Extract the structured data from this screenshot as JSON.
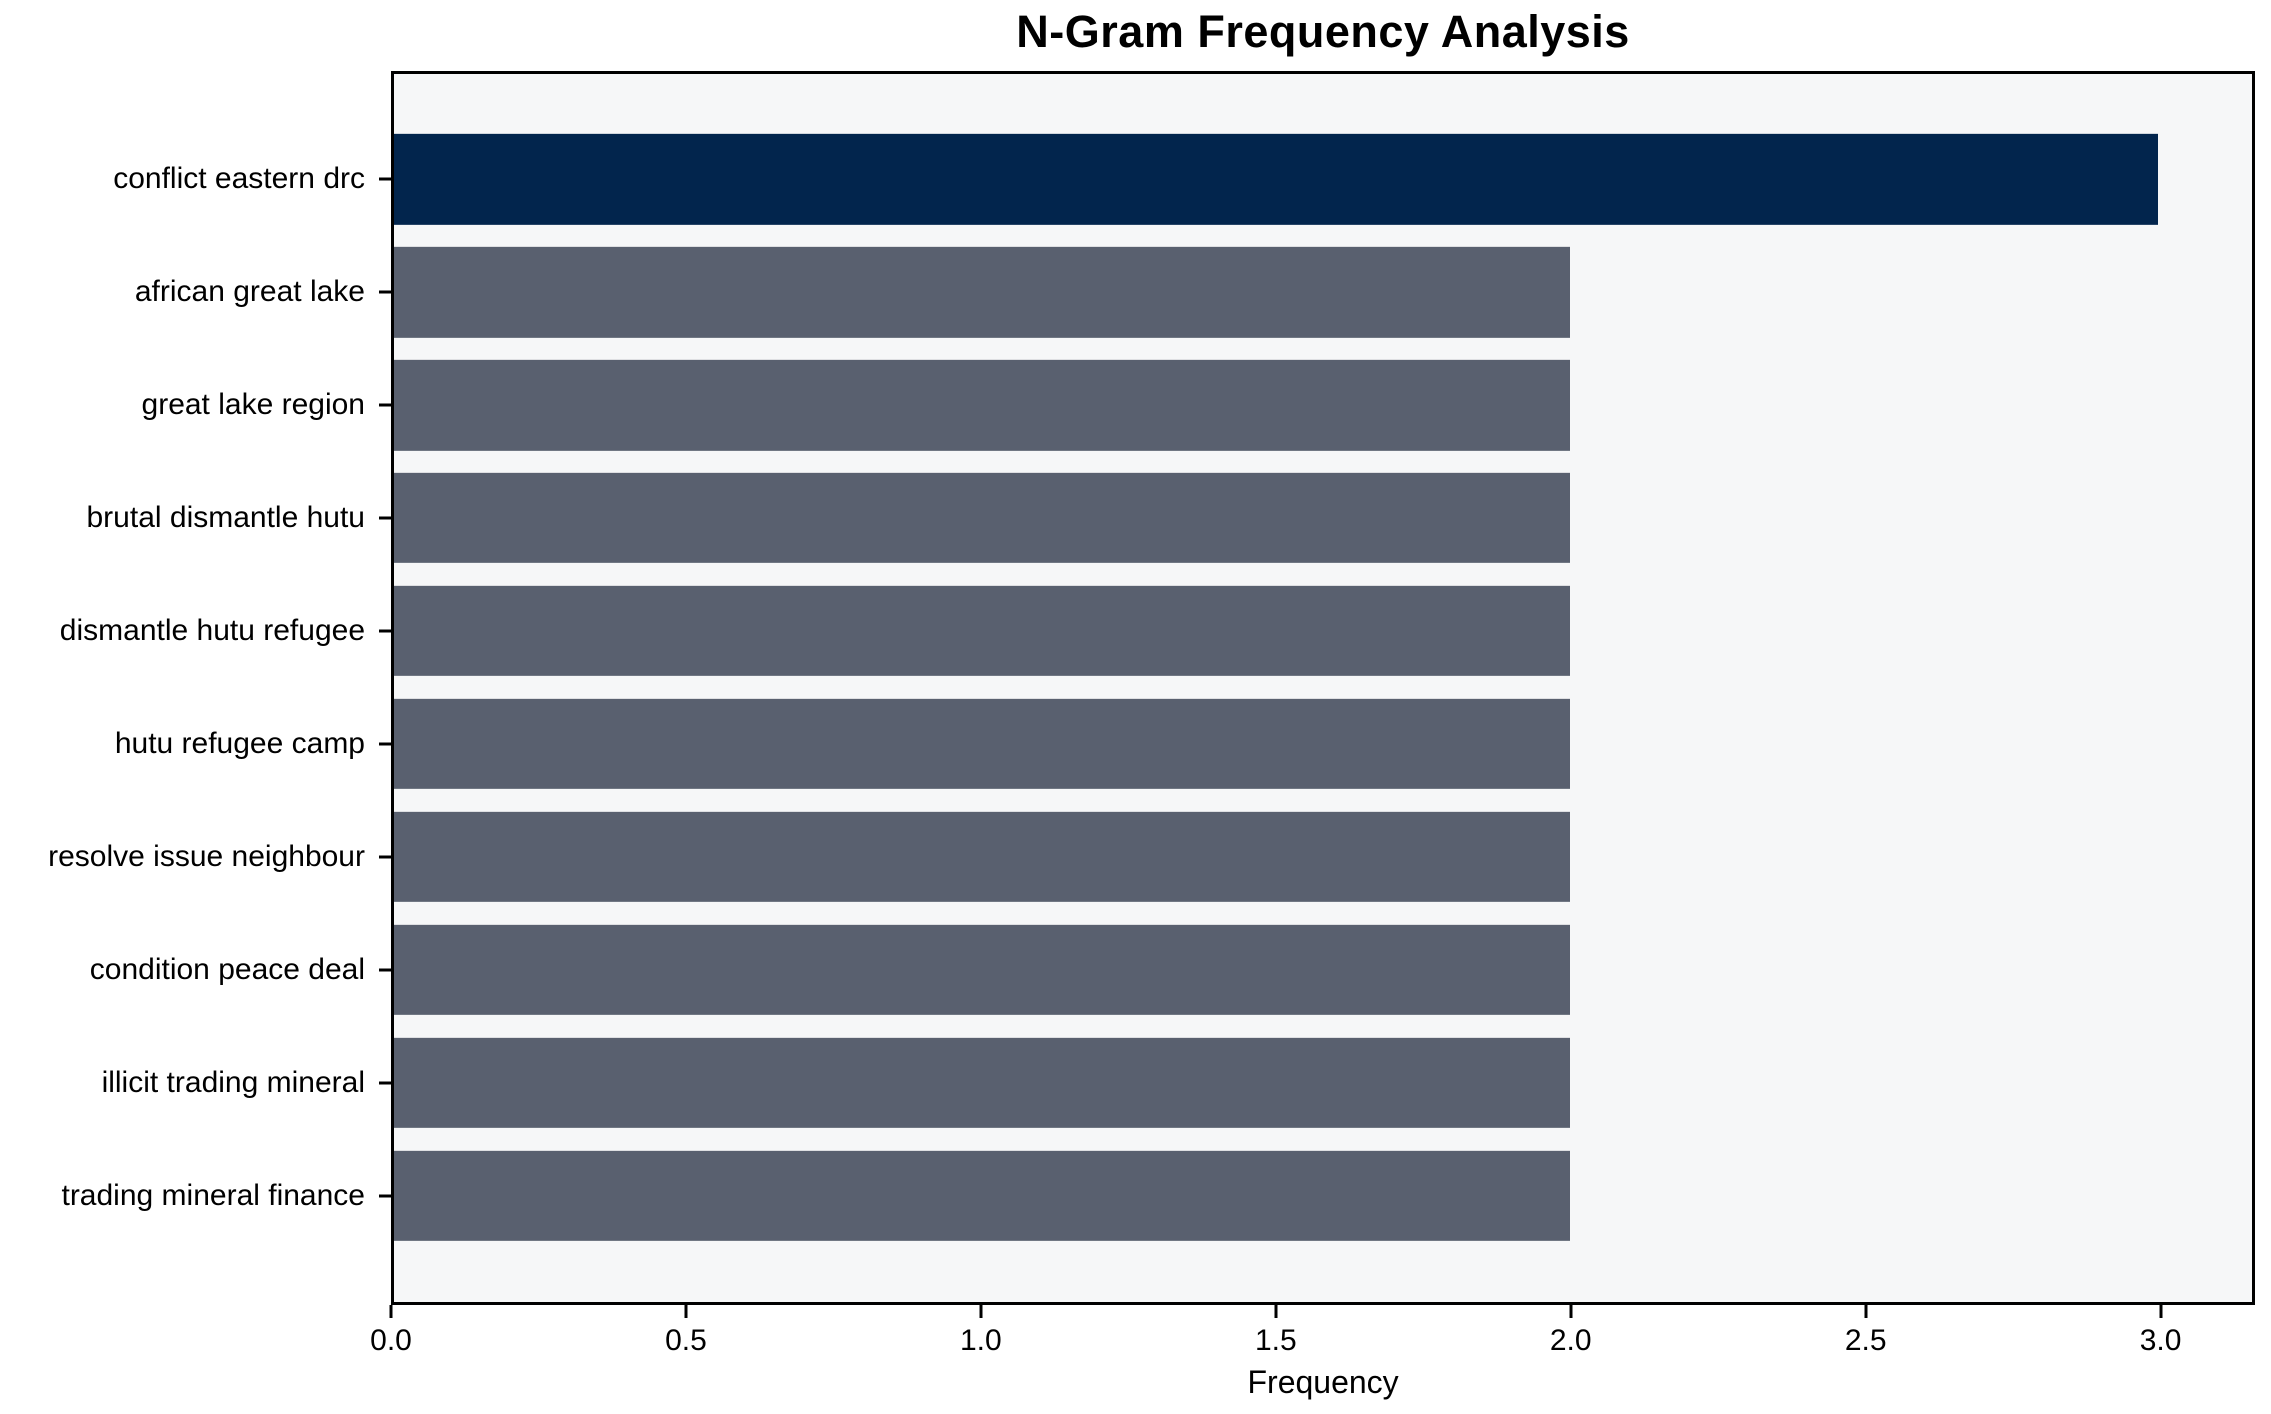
{
  "chart_data": {
    "type": "bar",
    "orientation": "horizontal",
    "title": "N-Gram Frequency Analysis",
    "xlabel": "Frequency",
    "ylabel": "",
    "categories": [
      "conflict eastern drc",
      "african great lake",
      "great lake region",
      "brutal dismantle hutu",
      "dismantle hutu refugee",
      "hutu refugee camp",
      "resolve issue neighbour",
      "condition peace deal",
      "illicit trading mineral",
      "trading mineral finance"
    ],
    "values": [
      3,
      2,
      2,
      2,
      2,
      2,
      2,
      2,
      2,
      2
    ],
    "bar_colors": [
      "#02254d",
      "#59606f",
      "#59606f",
      "#59606f",
      "#59606f",
      "#59606f",
      "#59606f",
      "#59606f",
      "#59606f",
      "#59606f"
    ],
    "xticks": [
      "0.0",
      "0.5",
      "1.0",
      "1.5",
      "2.0",
      "2.5",
      "3.0"
    ],
    "xtick_values": [
      0,
      0.5,
      1,
      1.5,
      2,
      2.5,
      3
    ],
    "xlim": [
      0,
      3.16
    ],
    "grid": false,
    "legend_position": "none",
    "colors": {
      "highlight_bar": "#02254d",
      "base_bar": "#59606f",
      "plot_background": "#f6f7f8",
      "figure_background": "#ffffff",
      "axis_border": "#000000",
      "text": "#000000"
    }
  }
}
